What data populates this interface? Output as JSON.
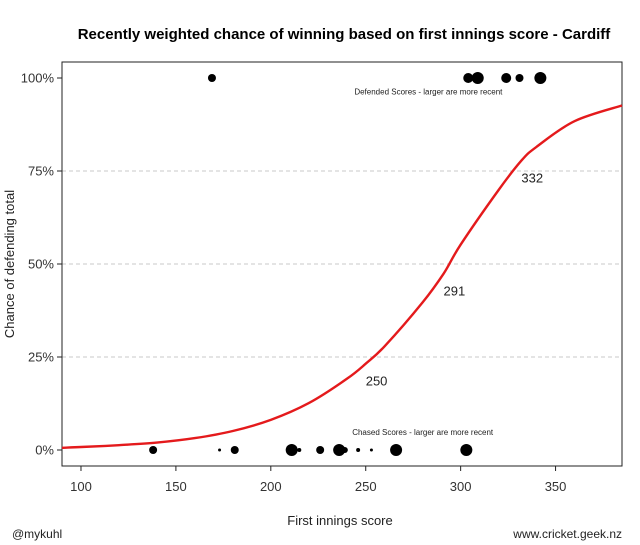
{
  "chart_data": {
    "type": "scatter",
    "title": "Recently weighted chance of winning based on first innings score - Cardiff",
    "xlabel": "First innings score",
    "ylabel": "Chance of defending total",
    "xlim": [
      90,
      385
    ],
    "ylim": [
      0,
      100
    ],
    "x_ticks": [
      100,
      150,
      200,
      250,
      300,
      350
    ],
    "x_tick_labels": [
      "100",
      "150",
      "200",
      "250",
      "300",
      "350"
    ],
    "y_ticks": [
      0,
      25,
      50,
      75,
      100
    ],
    "y_tick_labels": [
      "0%",
      "25%",
      "50%",
      "75%",
      "100%"
    ],
    "grid": "horizontal dashed at 25%, 50%, 75%",
    "curve": {
      "type": "logistic",
      "color": "#e41a1c",
      "points": [
        {
          "x": 90,
          "y": 0.6
        },
        {
          "x": 100,
          "y": 0.8
        },
        {
          "x": 120,
          "y": 1.3
        },
        {
          "x": 140,
          "y": 2.0
        },
        {
          "x": 160,
          "y": 3.2
        },
        {
          "x": 180,
          "y": 5.1
        },
        {
          "x": 200,
          "y": 8.1
        },
        {
          "x": 220,
          "y": 12.6
        },
        {
          "x": 240,
          "y": 19.1
        },
        {
          "x": 250,
          "y": 23.2
        },
        {
          "x": 260,
          "y": 27.9
        },
        {
          "x": 280,
          "y": 39.7
        },
        {
          "x": 291,
          "y": 47.4
        },
        {
          "x": 300,
          "y": 55.2
        },
        {
          "x": 320,
          "y": 69.9
        },
        {
          "x": 332,
          "y": 77.8
        },
        {
          "x": 340,
          "y": 81.5
        },
        {
          "x": 360,
          "y": 88.4
        },
        {
          "x": 385,
          "y": 92.6
        }
      ]
    },
    "curve_labels": [
      {
        "text": "250",
        "x": 250,
        "y": 23.2
      },
      {
        "text": "291",
        "x": 291,
        "y": 47.4
      },
      {
        "text": "332",
        "x": 332,
        "y": 77.8
      }
    ],
    "series": [
      {
        "name": "Defended Scores",
        "y": 100,
        "points": [
          {
            "x": 169,
            "size": 4
          },
          {
            "x": 304,
            "size": 5
          },
          {
            "x": 309,
            "size": 6
          },
          {
            "x": 324,
            "size": 5
          },
          {
            "x": 331,
            "size": 4
          },
          {
            "x": 342,
            "size": 6
          }
        ]
      },
      {
        "name": "Chased Scores",
        "y": 0,
        "points": [
          {
            "x": 138,
            "size": 4
          },
          {
            "x": 173,
            "size": 1.5
          },
          {
            "x": 181,
            "size": 4
          },
          {
            "x": 211,
            "size": 6
          },
          {
            "x": 215,
            "size": 2
          },
          {
            "x": 226,
            "size": 4
          },
          {
            "x": 236,
            "size": 6
          },
          {
            "x": 239,
            "size": 3
          },
          {
            "x": 246,
            "size": 2
          },
          {
            "x": 253,
            "size": 1.5
          },
          {
            "x": 266,
            "size": 6
          },
          {
            "x": 303,
            "size": 6
          }
        ]
      }
    ],
    "annotations": [
      {
        "text": "Defended Scores - larger are more recent",
        "x": 283,
        "y": 95.5
      },
      {
        "text": "Chased Scores - larger are more recent",
        "x": 280,
        "y": 4
      }
    ]
  },
  "footer": {
    "left": "@mykuhl",
    "right": "www.cricket.geek.nz"
  }
}
